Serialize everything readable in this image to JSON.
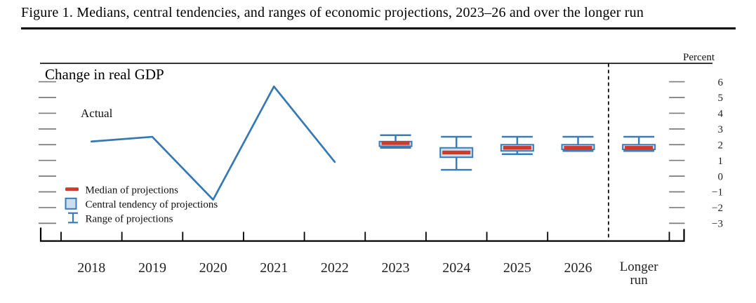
{
  "page": {
    "title": "Figure 1. Medians, central tendencies, and ranges of economic projections, 2023–26 and over the longer run"
  },
  "chart_data": {
    "type": "line+boxplot",
    "title": "Change in real GDP",
    "unit_label": "Percent",
    "grid": false,
    "x_categories": [
      "2018",
      "2019",
      "2020",
      "2021",
      "2022",
      "2023",
      "2024",
      "2025",
      "2026",
      "Longer run"
    ],
    "yticks": [
      "6",
      "5",
      "4",
      "3",
      "2",
      "1",
      "0",
      "−1",
      "−2",
      "−3"
    ],
    "ytick_values": [
      6,
      5,
      4,
      3,
      2,
      1,
      0,
      -1,
      -2,
      -3
    ],
    "ylim": [
      -3.6,
      6.8
    ],
    "actual_series": {
      "label": "Actual",
      "x": [
        "2018",
        "2019",
        "2020",
        "2021",
        "2022"
      ],
      "values": [
        2.2,
        2.5,
        -1.5,
        5.7,
        0.9
      ]
    },
    "projection_series": {
      "categories": [
        "2023",
        "2024",
        "2025",
        "2026",
        "Longer run"
      ],
      "median": [
        2.1,
        1.5,
        1.8,
        1.8,
        1.8
      ],
      "central_tendency": [
        [
          1.9,
          2.2
        ],
        [
          1.2,
          1.8
        ],
        [
          1.6,
          2.0
        ],
        [
          1.7,
          2.0
        ],
        [
          1.7,
          2.0
        ]
      ],
      "range": [
        [
          1.8,
          2.6
        ],
        [
          0.4,
          2.5
        ],
        [
          1.4,
          2.5
        ],
        [
          1.6,
          2.5
        ],
        [
          1.6,
          2.5
        ]
      ]
    },
    "legend": [
      {
        "id": "median",
        "label": "Median of projections"
      },
      {
        "id": "central-tendency",
        "label": "Central tendency of projections"
      },
      {
        "id": "range",
        "label": "Range of projections"
      }
    ]
  },
  "colors": {
    "line_blue": "#3578b3",
    "box_border_blue": "#3a7cb8",
    "box_fill_blue": "#cbdef0",
    "median_red": "#d13a29",
    "axis_black": "#000000",
    "side_dash_gray": "#7b7b7b",
    "label_dark": "#1f1f1f"
  }
}
